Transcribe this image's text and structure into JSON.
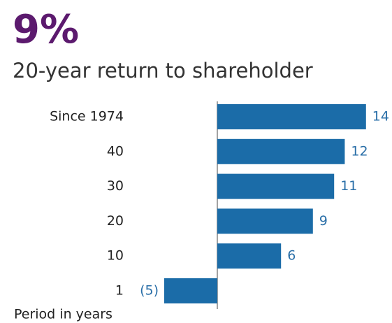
{
  "chart_data": {
    "type": "hbar",
    "title": "9%",
    "subtitle": "20-year return to shareholder",
    "y_label": "Period in years",
    "categories": [
      "Since 1974",
      "40",
      "30",
      "20",
      "10",
      "1"
    ],
    "values": [
      14,
      12,
      11,
      9,
      6,
      -5
    ],
    "value_labels": [
      "14",
      "12",
      "11",
      "9",
      "6",
      "(5)"
    ],
    "color": "#1b6ca8",
    "label_color": "#2a6fa8",
    "title_color": "#5c1a6e"
  }
}
